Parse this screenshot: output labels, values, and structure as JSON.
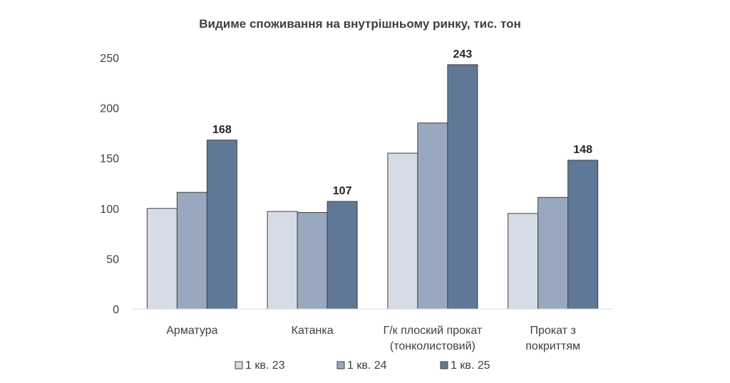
{
  "chart_data": {
    "type": "bar",
    "title": "Видиме споживання на внутрішньому ринку, тис. тон",
    "xlabel": "",
    "ylabel": "",
    "ylim": [
      0,
      250
    ],
    "yticks": [
      "0",
      "50",
      "100",
      "150",
      "200",
      "250"
    ],
    "ytick_values": [
      0,
      50,
      100,
      150,
      200,
      250
    ],
    "grid": false,
    "legend_position": "bottom",
    "categories": [
      [
        "Арматура"
      ],
      [
        "Катанка"
      ],
      [
        "Г/к плоский прокат",
        "(тонколистовий)"
      ],
      [
        "Прокат з",
        "покриттям"
      ]
    ],
    "series": [
      {
        "name": "1 кв. 23",
        "color": "#d6dce5",
        "values": [
          100,
          97,
          155,
          95
        ]
      },
      {
        "name": "1 кв. 24",
        "color": "#9aa8bf",
        "values": [
          116,
          96,
          185,
          111
        ]
      },
      {
        "name": "1 кв. 25",
        "color": "#607898",
        "values": [
          168,
          107,
          243,
          148
        ]
      }
    ],
    "data_labels": [
      {
        "series": 2,
        "category": 0,
        "text": "168"
      },
      {
        "series": 2,
        "category": 1,
        "text": "107"
      },
      {
        "series": 2,
        "category": 2,
        "text": "243"
      },
      {
        "series": 2,
        "category": 3,
        "text": "148"
      }
    ]
  }
}
